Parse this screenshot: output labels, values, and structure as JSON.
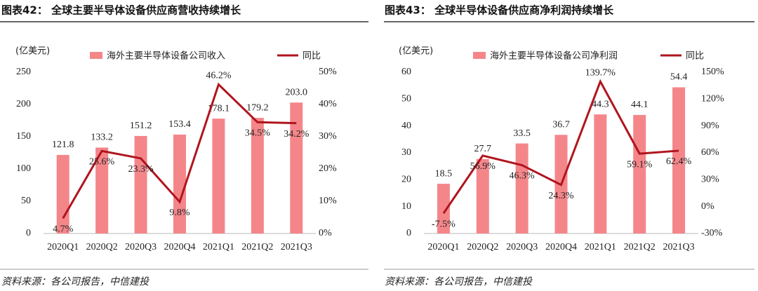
{
  "chart_data": [
    {
      "type": "combo",
      "title": "图表42： 全球主要半导体设备供应商营收持续增长",
      "unit_label": "(亿美元)",
      "categories": [
        "2020Q1",
        "2020Q2",
        "2020Q3",
        "2020Q4",
        "2021Q1",
        "2021Q2",
        "2021Q3"
      ],
      "series": [
        {
          "name": "海外主要半导体设备公司收入",
          "type": "bar",
          "color": "#f4868a",
          "values": [
            121.8,
            133.2,
            151.2,
            153.4,
            178.1,
            179.2,
            203.0
          ],
          "value_labels": [
            "121.8",
            "133.2",
            "151.2",
            "153.4",
            "178.1",
            "179.2",
            "203.0"
          ]
        },
        {
          "name": "同比",
          "type": "line",
          "axis": "y2",
          "color": "#b0151e",
          "values": [
            4.7,
            25.6,
            23.3,
            9.8,
            46.2,
            34.5,
            34.2
          ],
          "value_labels": [
            "4.7%",
            "25.6%",
            "23.3%",
            "9.8%",
            "46.2%",
            "34.5%",
            "34.2%"
          ]
        }
      ],
      "ylim": [
        0,
        250
      ],
      "yticks": [
        0,
        50,
        100,
        150,
        200,
        250
      ],
      "y2lim": [
        0,
        50
      ],
      "y2ticks": [
        {
          "value": 0,
          "label": "0%"
        },
        {
          "value": 10,
          "label": "10%"
        },
        {
          "value": 20,
          "label": "20%"
        },
        {
          "value": 30,
          "label": "30%"
        },
        {
          "value": 40,
          "label": "40%"
        },
        {
          "value": 50,
          "label": "50%"
        }
      ],
      "source": "资料来源：各公司报告，中信建投"
    },
    {
      "type": "combo",
      "title": "图表43： 全球半导体设备供应商净利润持续增长",
      "unit_label": "(亿美元)",
      "categories": [
        "2020Q1",
        "2020Q2",
        "2020Q3",
        "2020Q4",
        "2021Q1",
        "2021Q2",
        "2021Q3"
      ],
      "series": [
        {
          "name": "海外主要半导体设备公司净利润",
          "type": "bar",
          "color": "#f4868a",
          "values": [
            18.5,
            27.7,
            33.5,
            36.7,
            44.3,
            44.1,
            54.4
          ],
          "value_labels": [
            "18.5",
            "27.7",
            "33.5",
            "36.7",
            "44.3",
            "44.1",
            "54.4"
          ]
        },
        {
          "name": "同比",
          "type": "line",
          "axis": "y2",
          "color": "#b0151e",
          "values": [
            -7.5,
            56.9,
            46.3,
            24.3,
            139.7,
            59.1,
            62.4
          ],
          "value_labels": [
            "-7.5%",
            "56.9%",
            "46.3%",
            "24.3%",
            "139.7%",
            "59.1%",
            "62.4%"
          ]
        }
      ],
      "ylim": [
        0,
        60
      ],
      "yticks": [
        0,
        10,
        20,
        30,
        40,
        50,
        60
      ],
      "y2lim": [
        -30,
        150
      ],
      "y2ticks": [
        {
          "value": -30,
          "label": "-30%"
        },
        {
          "value": 0,
          "label": "0%"
        },
        {
          "value": 30,
          "label": "30%"
        },
        {
          "value": 60,
          "label": "60%"
        },
        {
          "value": 90,
          "label": "90%"
        },
        {
          "value": 120,
          "label": "120%"
        },
        {
          "value": 150,
          "label": "150%"
        }
      ],
      "source": "资料来源：各公司报告，中信建投"
    }
  ]
}
